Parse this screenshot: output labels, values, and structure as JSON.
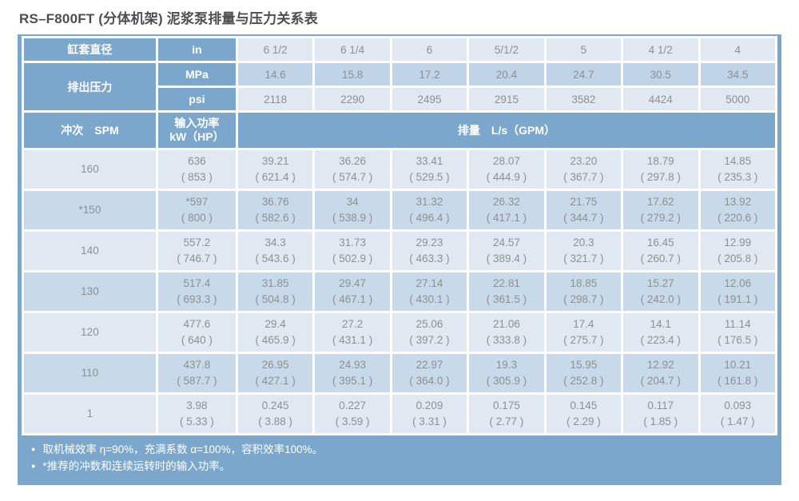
{
  "title": "RS–F800FT (分体机架) 泥浆泵排量与压力关系表",
  "colors": {
    "header_blue": "#7CA7CC",
    "row_light": "#E0E9F2",
    "row_medium": "#C8D9E9",
    "mpa_row_blue": "#BFD4E6",
    "data_text_gray": "#8B9094",
    "title_gray": "#4E4E50"
  },
  "table": {
    "liner_diameter": {
      "label": "缸套直径",
      "unit": "in",
      "values": [
        "6 1/2",
        "6 1/4",
        "6",
        "5/1/2",
        "5",
        "4 1/2",
        "4"
      ]
    },
    "discharge_pressure": {
      "label": "排出压力",
      "mpa_label": "MPa",
      "mpa_values": [
        "14.6",
        "15.8",
        "17.2",
        "20.4",
        "24.7",
        "30.5",
        "34.5"
      ],
      "psi_label": "psi",
      "psi_values": [
        "2118",
        "2290",
        "2495",
        "2915",
        "3582",
        "4424",
        "5000"
      ]
    },
    "stroke_header": "冲次　SPM",
    "power_header_line1": "输入功率",
    "power_header_line2": "kW（HP）",
    "displacement_header": "排量　L/s（GPM）",
    "rows": [
      {
        "spm": "160",
        "power": [
          "636",
          "( 853 )"
        ],
        "values": [
          [
            "39.21",
            "( 621.4 )"
          ],
          [
            "36.26",
            "( 574.7 )"
          ],
          [
            "33.41",
            "( 529.5 )"
          ],
          [
            "28.07",
            "( 444.9 )"
          ],
          [
            "23.20",
            "( 367.7 )"
          ],
          [
            "18.79",
            "( 297.8 )"
          ],
          [
            "14.85",
            "( 235.3 )"
          ]
        ]
      },
      {
        "spm": "*150",
        "power": [
          "*597",
          "( 800 )"
        ],
        "values": [
          [
            "36.76",
            "( 582.6 )"
          ],
          [
            "34",
            "( 538.9 )"
          ],
          [
            "31.32",
            "( 496.4 )"
          ],
          [
            "26.32",
            "( 417.1 )"
          ],
          [
            "21.75",
            "( 344.7 )"
          ],
          [
            "17.62",
            "( 279.2 )"
          ],
          [
            "13.92",
            "( 220.6 )"
          ]
        ]
      },
      {
        "spm": "140",
        "power": [
          "557.2",
          "( 746.7 )"
        ],
        "values": [
          [
            "34.3",
            "( 543.6 )"
          ],
          [
            "31.73",
            "( 502.9 )"
          ],
          [
            "29.23",
            "( 463.3 )"
          ],
          [
            "24.57",
            "( 389.4 )"
          ],
          [
            "20.3",
            "( 321.7 )"
          ],
          [
            "16.45",
            "( 260.7 )"
          ],
          [
            "12.99",
            "( 205.8 )"
          ]
        ]
      },
      {
        "spm": "130",
        "power": [
          "517.4",
          "( 693.3 )"
        ],
        "values": [
          [
            "31.85",
            "( 504.8 )"
          ],
          [
            "29.47",
            "( 467.1 )"
          ],
          [
            "27.14",
            "( 430.1 )"
          ],
          [
            "22.81",
            "( 361.5 )"
          ],
          [
            "18.85",
            "( 298.7 )"
          ],
          [
            "15.27",
            "( 242.0 )"
          ],
          [
            "12.06",
            "( 191.1 )"
          ]
        ]
      },
      {
        "spm": "120",
        "power": [
          "477.6",
          "( 640 )"
        ],
        "values": [
          [
            "29.4",
            "( 465.9 )"
          ],
          [
            "27.2",
            "( 431.1 )"
          ],
          [
            "25.06",
            "( 397.2 )"
          ],
          [
            "21.06",
            "( 333.8 )"
          ],
          [
            "17.4",
            "( 275.7 )"
          ],
          [
            "14.1",
            "( 223.4 )"
          ],
          [
            "11.14",
            "( 176.5 )"
          ]
        ]
      },
      {
        "spm": "110",
        "power": [
          "437.8",
          "( 587.7 )"
        ],
        "values": [
          [
            "26.95",
            "( 427.1 )"
          ],
          [
            "24.93",
            "( 395.1 )"
          ],
          [
            "22.97",
            "( 364.0 )"
          ],
          [
            "19.3",
            "( 305.9 )"
          ],
          [
            "15.95",
            "( 252.8 )"
          ],
          [
            "12.92",
            "( 204.7 )"
          ],
          [
            "10.21",
            "( 161.8 )"
          ]
        ]
      },
      {
        "spm": "1",
        "power": [
          "3.98",
          "( 5.33 )"
        ],
        "values": [
          [
            "0.245",
            "( 3.88 )"
          ],
          [
            "0.227",
            "( 3.59 )"
          ],
          [
            "0.209",
            "( 3.31 )"
          ],
          [
            "0.175",
            "( 2.77 )"
          ],
          [
            "0.145",
            "( 2.29 )"
          ],
          [
            "0.117",
            "( 1.85 )"
          ],
          [
            "0.093",
            "( 1.47 )"
          ]
        ]
      }
    ]
  },
  "notes": [
    "取机械效率 η=90%，充满系数 α=100%，容积效率100%。",
    "*推荐的冲数和连续运转时的输入功率。"
  ]
}
